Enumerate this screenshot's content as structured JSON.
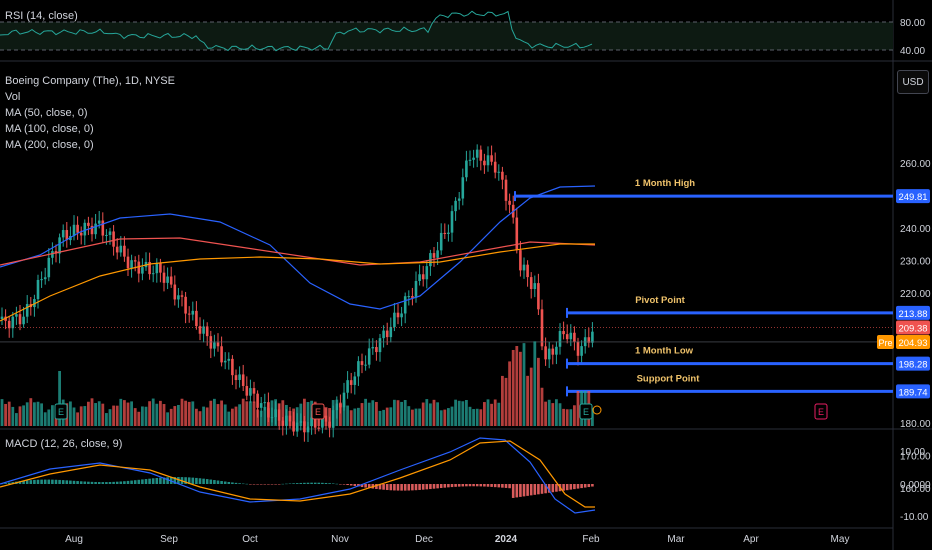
{
  "rsi": {
    "label": "RSI (14, close)",
    "levels": [
      "80.00",
      "40.00"
    ]
  },
  "main": {
    "symbol": "Boeing Company (The), 1D, NYSE",
    "indicators": [
      "Vol",
      "MA (50, close, 0)",
      "MA (100, close, 0)",
      "MA (200, close, 0)"
    ],
    "currency_button": "USD",
    "price_axis": [
      "260.00",
      "240.00",
      "230.00",
      "220.00",
      "180.00",
      "170.00",
      "160.00"
    ],
    "lines": [
      {
        "label": "1 Month High",
        "badge": "249.81",
        "value": 249.81
      },
      {
        "label": "Pivot Point",
        "badge": "213.88",
        "value": 213.88
      },
      {
        "label": "1 Month Low",
        "badge": "198.28",
        "value": 198.28
      },
      {
        "label": "Support Point",
        "badge": "189.74",
        "value": 189.74
      }
    ],
    "last_price_badge": "209.38",
    "pre_label": "Pre",
    "pre_price_badge": "204.93",
    "earnings_marker": "E"
  },
  "macd": {
    "label": "MACD (12, 26, close, 9)",
    "levels": [
      "10.00",
      "0.0000",
      "-10.00"
    ]
  },
  "time_axis": [
    "Aug",
    "Sep",
    "Oct",
    "Nov",
    "Dec",
    "2024",
    "Feb",
    "Mar",
    "Apr",
    "May"
  ],
  "colors": {
    "up": "#26a69a",
    "down": "#ef5350",
    "ma50": "#2962ff",
    "ma100": "#ef5350",
    "ma200": "#ff9800",
    "level_line": "#2962ff",
    "label_text": "#f0c36b",
    "rsi_line": "#26a69a"
  }
}
